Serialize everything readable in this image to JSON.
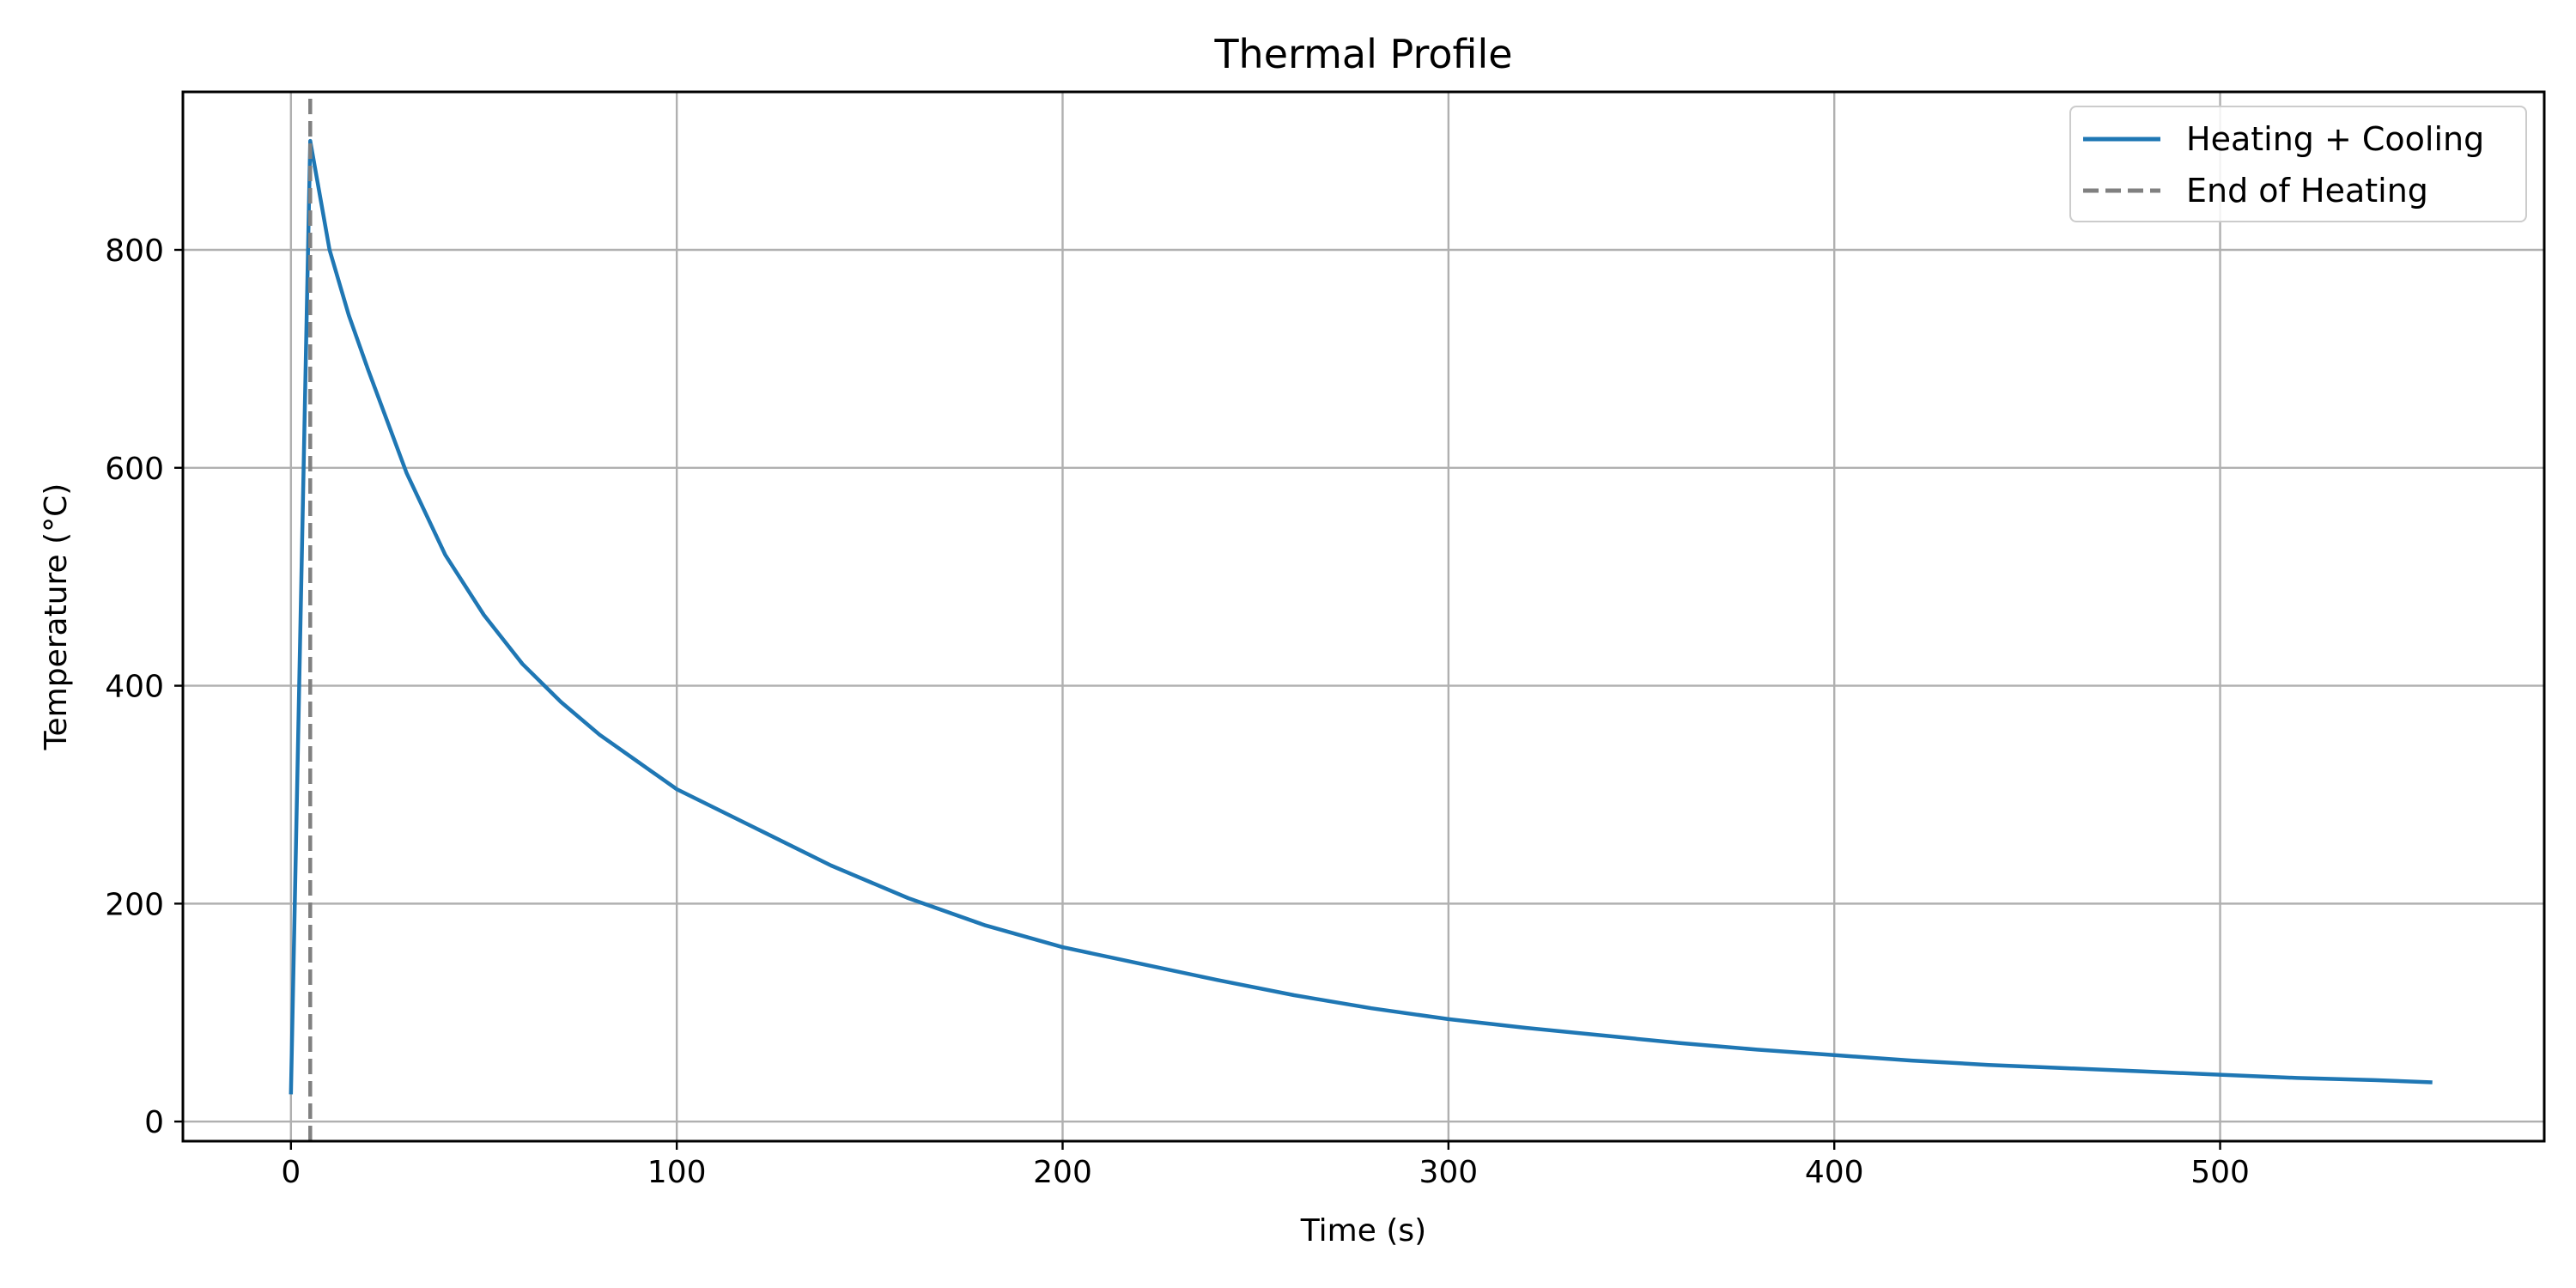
{
  "chart_data": {
    "type": "line",
    "title": "Thermal Profile",
    "xlabel": "Time (s)",
    "ylabel": "Temperature (°C)",
    "xlim": [
      -28,
      584
    ],
    "ylim": [
      -18,
      945
    ],
    "x_ticks": [
      0,
      100,
      200,
      300,
      400,
      500
    ],
    "y_ticks": [
      0,
      200,
      400,
      600,
      800
    ],
    "grid": true,
    "legend_position": "top-right",
    "series": [
      {
        "name": "Heating + Cooling",
        "color": "#1f77b4",
        "style": "solid",
        "x": [
          0,
          5,
          10,
          15,
          20,
          30,
          40,
          50,
          60,
          70,
          80,
          90,
          100,
          120,
          140,
          160,
          180,
          200,
          220,
          240,
          260,
          280,
          300,
          320,
          340,
          360,
          380,
          400,
          420,
          440,
          460,
          480,
          500,
          520,
          540,
          555
        ],
        "y": [
          25,
          900,
          800,
          740,
          690,
          595,
          520,
          465,
          420,
          385,
          355,
          330,
          305,
          270,
          235,
          205,
          180,
          160,
          145,
          130,
          116,
          104,
          94,
          86,
          79,
          72,
          66,
          61,
          56,
          52,
          49,
          46,
          43,
          40,
          38,
          36
        ]
      },
      {
        "name": "End of Heating",
        "color": "#808080",
        "style": "dashed",
        "x": [
          5,
          5
        ],
        "y": [
          -18,
          945
        ]
      }
    ]
  }
}
